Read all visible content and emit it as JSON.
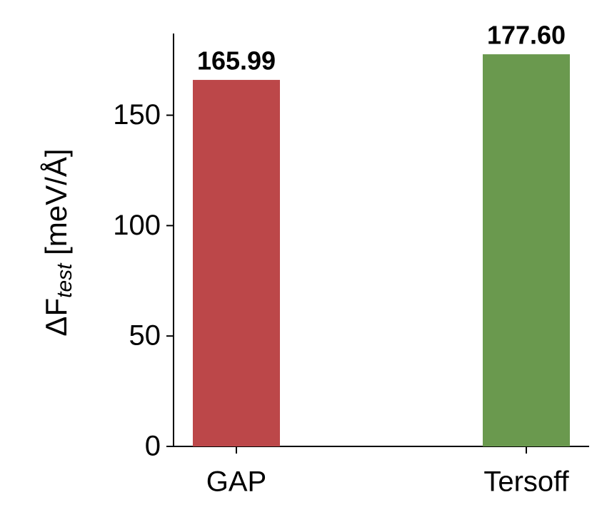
{
  "chart_data": {
    "type": "bar",
    "ylabel": {
      "symbol": "ΔF",
      "subscript": "test",
      "unit": " [meV/Å]"
    },
    "categories": [
      "GAP",
      "Tersoff"
    ],
    "values": [
      165.99,
      177.6
    ],
    "value_labels": [
      "165.99",
      "177.60"
    ],
    "colors": [
      "#bc4749",
      "#6a994e"
    ],
    "ylim": [
      0,
      187
    ],
    "yticks": [
      0,
      50,
      100,
      150
    ],
    "grid": false
  }
}
